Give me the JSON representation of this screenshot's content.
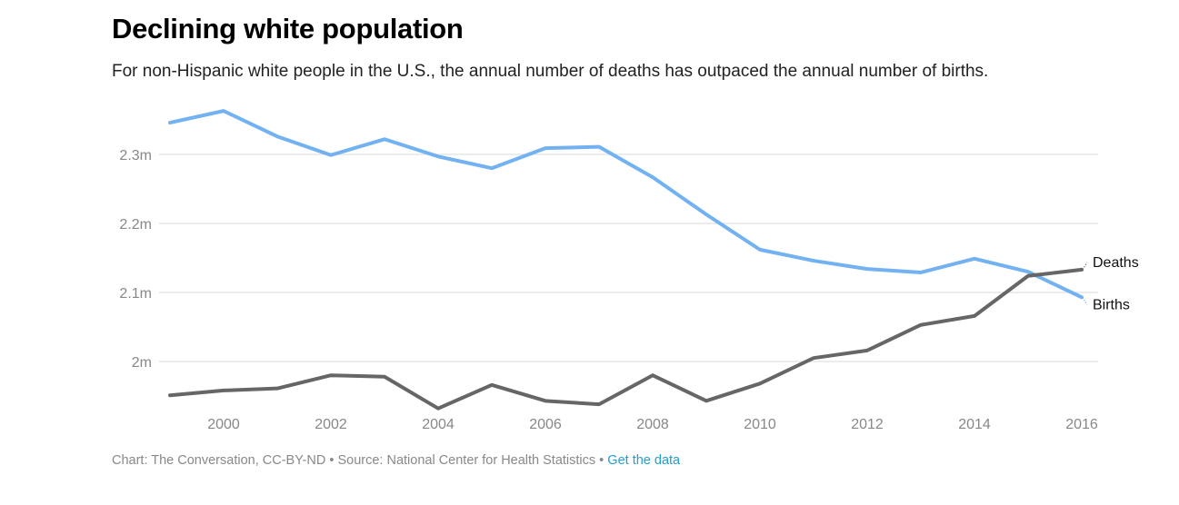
{
  "header": {
    "title": "Declining white population",
    "subtitle": "For non-Hispanic white people in the U.S., the annual number of deaths has outpaced the annual number of births."
  },
  "footer": {
    "credit": "Chart: The Conversation, CC-BY-ND",
    "separator": " • ",
    "source": "Source: National Center for Health Statistics",
    "link_label": "Get the data"
  },
  "chart_data": {
    "type": "line",
    "title": "Declining white population",
    "subtitle": "For non-Hispanic white people in the U.S., the annual number of deaths has outpaced the annual number of births.",
    "xlabel": "",
    "ylabel": "",
    "x": [
      1999,
      2000,
      2001,
      2002,
      2003,
      2004,
      2005,
      2006,
      2007,
      2008,
      2009,
      2010,
      2011,
      2012,
      2013,
      2014,
      2015,
      2016
    ],
    "x_ticks": [
      2000,
      2002,
      2004,
      2006,
      2008,
      2010,
      2012,
      2014,
      2016
    ],
    "x_tick_labels": [
      "2000",
      "2002",
      "2004",
      "2006",
      "2008",
      "2010",
      "2012",
      "2014",
      "2016"
    ],
    "y_ticks": [
      2.0,
      2.1,
      2.2,
      2.3
    ],
    "y_tick_labels": [
      "2m",
      "2.1m",
      "2.2m",
      "2.3m"
    ],
    "ylim": [
      1.92,
      2.38
    ],
    "xlim": [
      1999,
      2016
    ],
    "grid": true,
    "legend": "direct labels at line ends (right)",
    "units": "millions",
    "series": [
      {
        "name": "Births",
        "color": "#72b1f2",
        "values": [
          2.346,
          2.363,
          2.326,
          2.299,
          2.322,
          2.297,
          2.28,
          2.309,
          2.311,
          2.267,
          2.213,
          2.162,
          2.146,
          2.134,
          2.129,
          2.149,
          2.13,
          2.093
        ]
      },
      {
        "name": "Deaths",
        "color": "#666666",
        "values": [
          1.951,
          1.958,
          1.961,
          1.98,
          1.978,
          1.932,
          1.966,
          1.943,
          1.938,
          1.98,
          1.943,
          1.968,
          2.005,
          2.016,
          2.053,
          2.066,
          2.124,
          2.133
        ]
      }
    ]
  }
}
